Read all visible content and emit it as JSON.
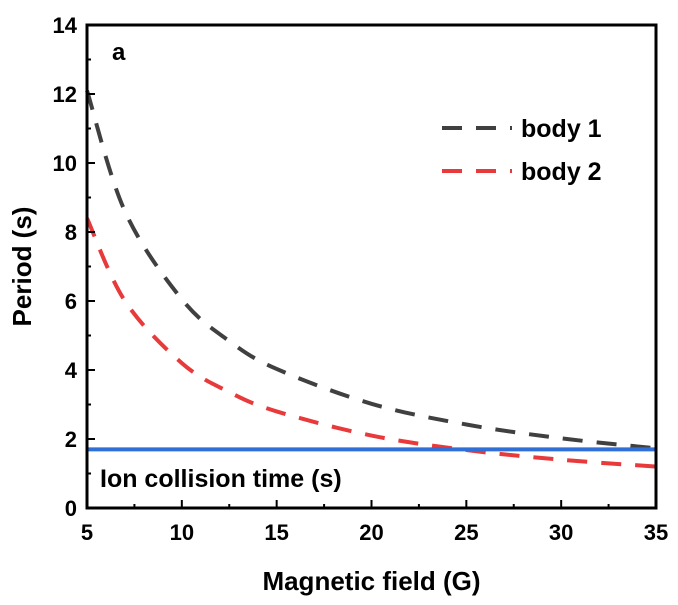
{
  "chart_data": {
    "type": "line",
    "panel_label": "a",
    "xlabel": "Magnetic field (G)",
    "ylabel": "Period (s)",
    "xlim": [
      5,
      35
    ],
    "ylim": [
      0,
      14
    ],
    "xticks": [
      5,
      10,
      15,
      20,
      25,
      30,
      35
    ],
    "yticks": [
      0,
      2,
      4,
      6,
      8,
      10,
      12,
      14
    ],
    "grid": false,
    "legend_position": "top-right",
    "series": [
      {
        "name": "body 1",
        "style": "dashed",
        "color": "#404040",
        "x": [
          5,
          7,
          10,
          12.5,
          15,
          20,
          25,
          30,
          35
        ],
        "y": [
          12.1,
          8.6,
          6.05,
          4.84,
          4.03,
          3.02,
          2.42,
          2.02,
          1.73
        ]
      },
      {
        "name": "body 2",
        "style": "dashed",
        "color": "#e8393b",
        "x": [
          5,
          7,
          10,
          12.5,
          15,
          20,
          25,
          30,
          35
        ],
        "y": [
          8.4,
          6.0,
          4.2,
          3.36,
          2.8,
          2.1,
          1.68,
          1.4,
          1.2
        ]
      },
      {
        "name": "Ion collision time (s)",
        "style": "solid",
        "color": "#2f6fd6",
        "x": [
          5,
          35
        ],
        "y": [
          1.7,
          1.7
        ]
      }
    ],
    "annotations": [
      {
        "text": "Ion collision time (s)",
        "x": 6,
        "y": 0.9
      }
    ]
  }
}
